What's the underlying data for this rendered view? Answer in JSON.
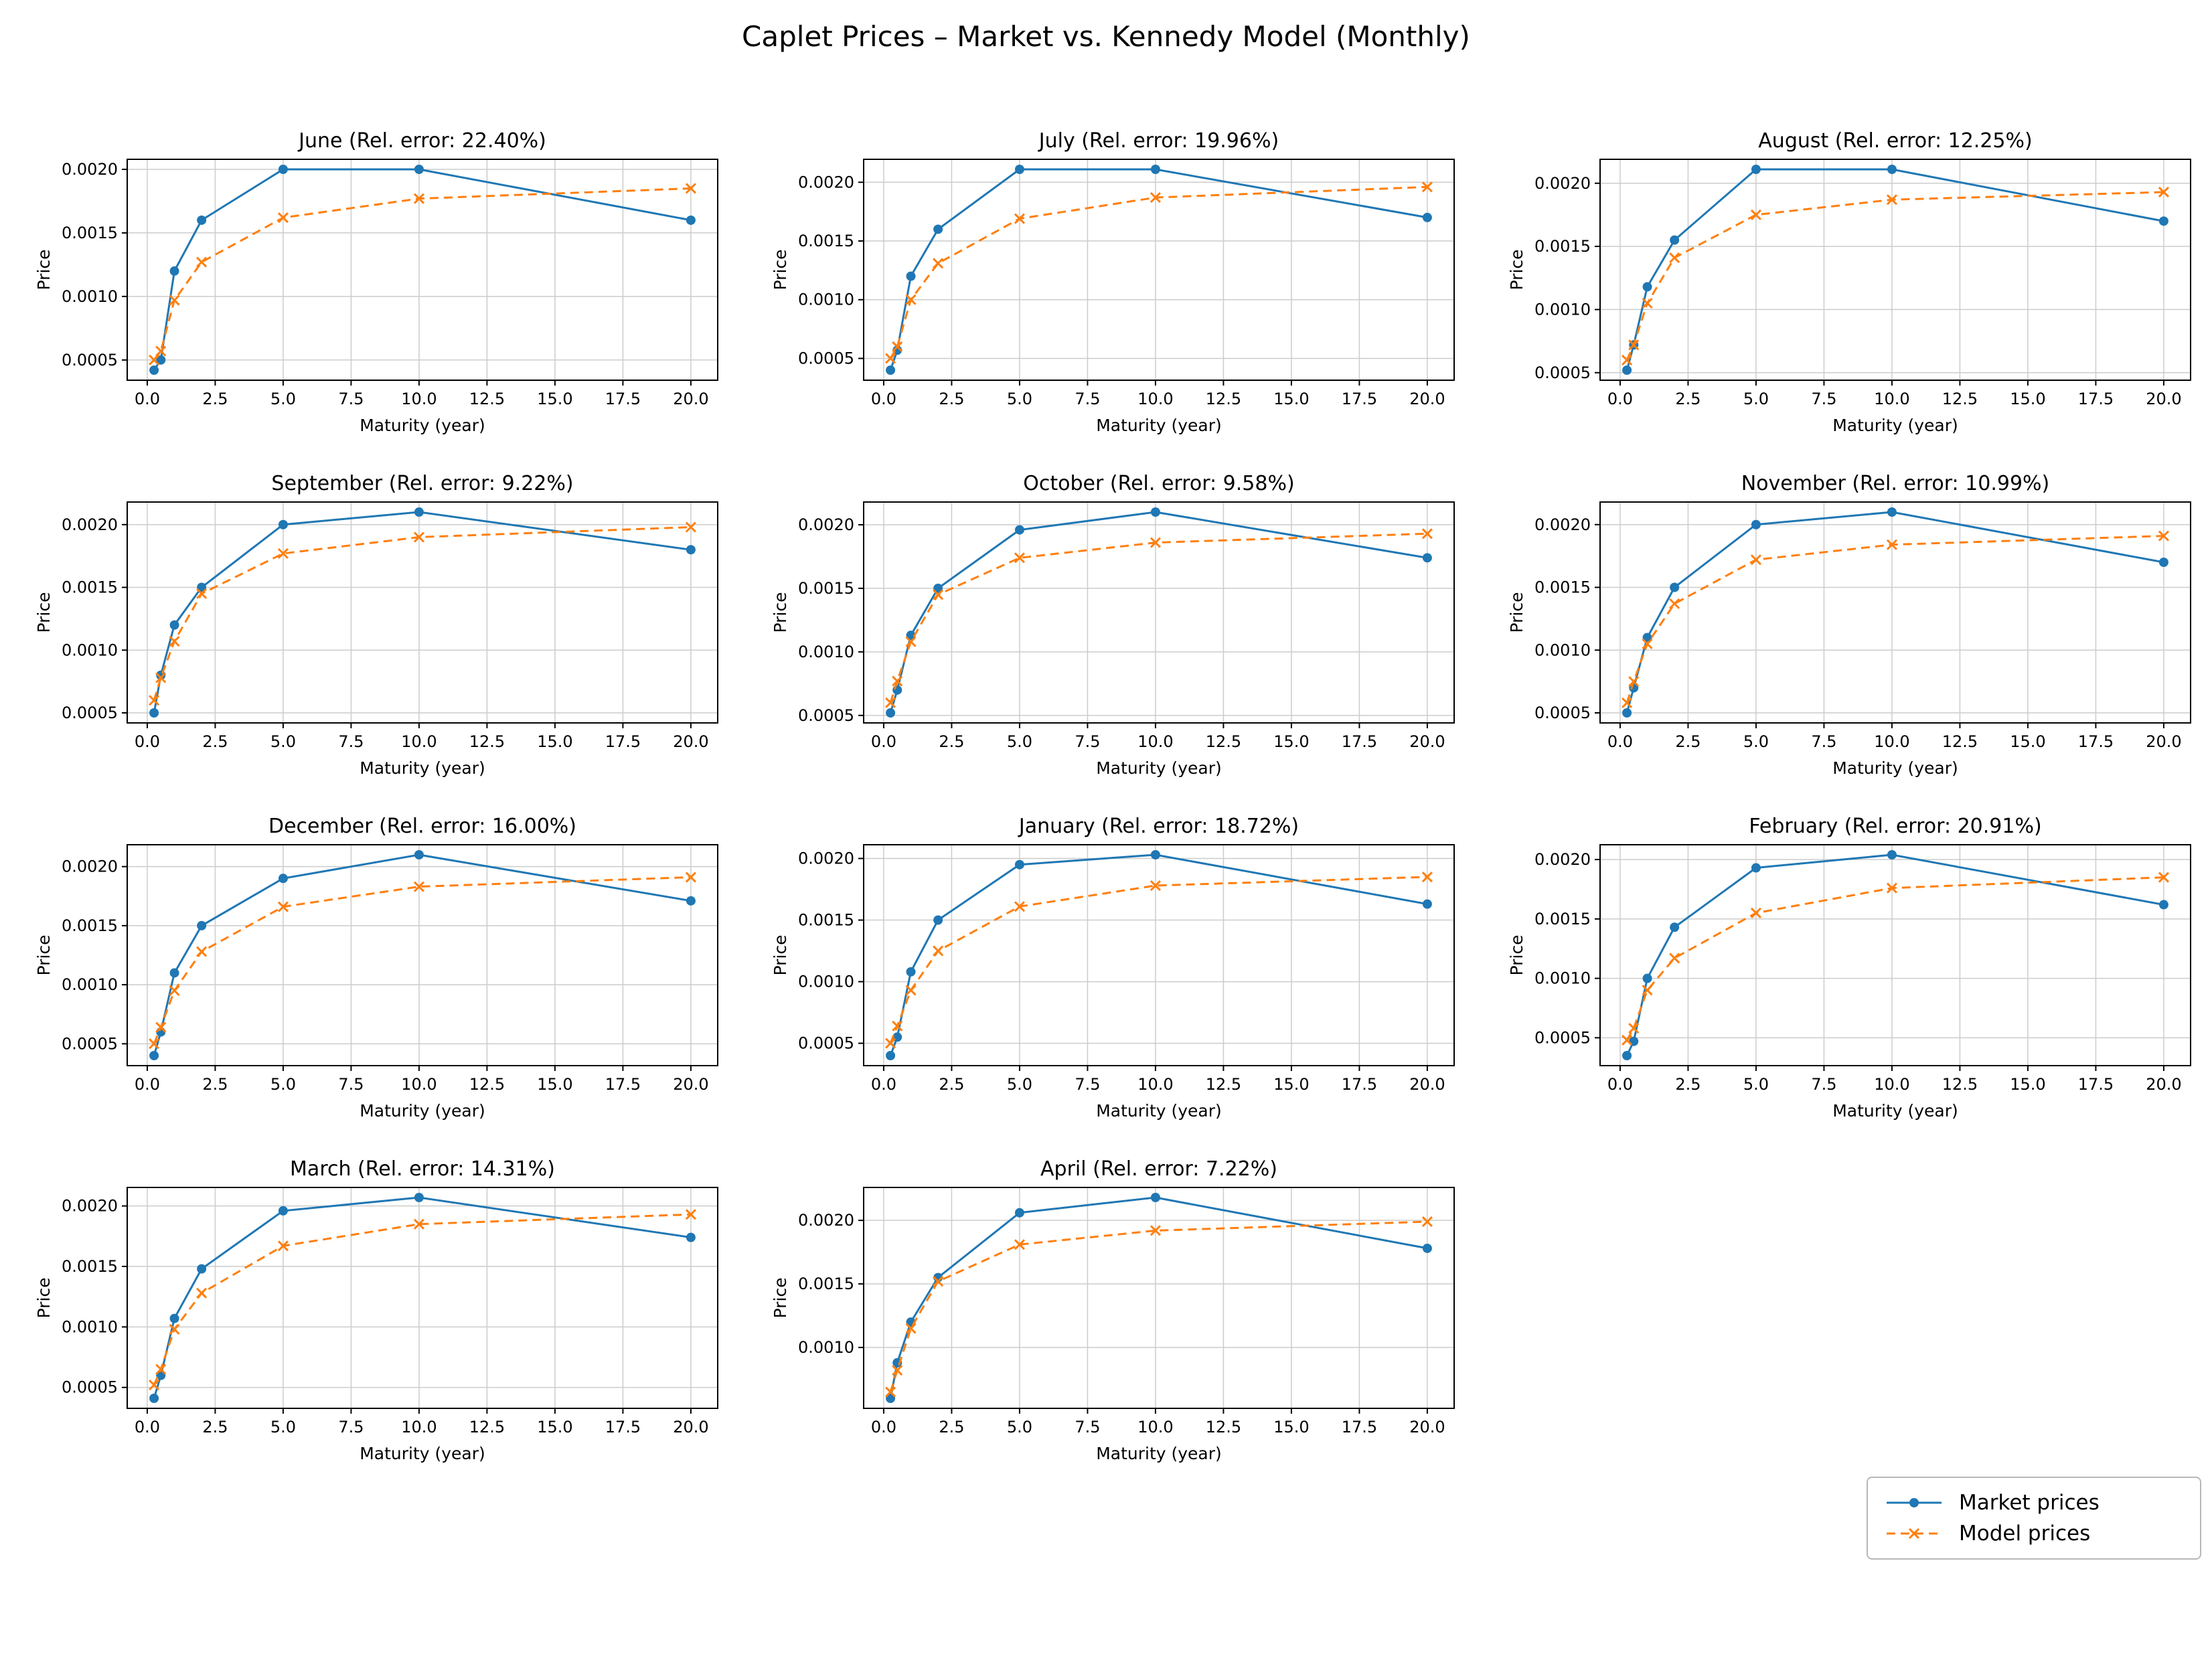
{
  "page": {
    "title": "Caplet Prices – Market vs. Kennedy Model (Monthly)"
  },
  "colors": {
    "market": "#1f77b4",
    "model": "#ff7f0e",
    "grid": "#cccccc",
    "axis": "#000000",
    "background": "#ffffff"
  },
  "chart_data": {
    "type": "line",
    "title": "Caplet Prices – Market vs. Kennedy Model (Monthly)",
    "xlabel": "Maturity (year)",
    "ylabel": "Price",
    "x": [
      0.25,
      0.5,
      1,
      2,
      5,
      10,
      20
    ],
    "xticks": {
      "values": [
        0,
        2.5,
        5,
        7.5,
        10,
        12.5,
        15,
        17.5,
        20
      ],
      "labels": [
        "0.0",
        "2.5",
        "5.0",
        "7.5",
        "10.0",
        "12.5",
        "15.0",
        "17.5",
        "20.0"
      ]
    },
    "yticks": {
      "values": [
        0.0005,
        0.001,
        0.0015,
        0.002
      ],
      "labels": [
        "0.0005",
        "0.0010",
        "0.0015",
        "0.0020"
      ]
    },
    "grid": true,
    "legend": [
      "Market prices",
      "Model prices"
    ],
    "legend_position": "bottom-right",
    "charts": [
      {
        "title": "June (Rel. error: 22.40%)",
        "series": [
          {
            "name": "Market prices",
            "values": [
              0.00042,
              0.0005,
              0.0012,
              0.0016,
              0.002,
              0.002,
              0.0016
            ]
          },
          {
            "name": "Model prices",
            "values": [
              0.0005,
              0.00057,
              0.00097,
              0.00127,
              0.00162,
              0.00177,
              0.00185
            ]
          }
        ]
      },
      {
        "title": "July (Rel. error: 19.96%)",
        "series": [
          {
            "name": "Market prices",
            "values": [
              0.0004,
              0.00057,
              0.0012,
              0.0016,
              0.00211,
              0.00211,
              0.0017
            ]
          },
          {
            "name": "Model prices",
            "values": [
              0.0005,
              0.0006,
              0.001,
              0.00131,
              0.00169,
              0.00187,
              0.00196
            ]
          }
        ]
      },
      {
        "title": "August (Rel. error: 12.25%)",
        "series": [
          {
            "name": "Market prices",
            "values": [
              0.00052,
              0.00072,
              0.00118,
              0.00155,
              0.00211,
              0.00211,
              0.0017
            ]
          },
          {
            "name": "Model prices",
            "values": [
              0.0006,
              0.00072,
              0.00105,
              0.00141,
              0.00175,
              0.00187,
              0.00193
            ]
          }
        ]
      },
      {
        "title": "September (Rel. error: 9.22%)",
        "series": [
          {
            "name": "Market prices",
            "values": [
              0.0005,
              0.0008,
              0.0012,
              0.0015,
              0.002,
              0.0021,
              0.0018
            ]
          },
          {
            "name": "Model prices",
            "values": [
              0.0006,
              0.00078,
              0.00107,
              0.00145,
              0.00177,
              0.0019,
              0.00198
            ]
          }
        ]
      },
      {
        "title": "October (Rel. error: 9.58%)",
        "series": [
          {
            "name": "Market prices",
            "values": [
              0.00052,
              0.0007,
              0.00113,
              0.0015,
              0.00196,
              0.0021,
              0.00174
            ]
          },
          {
            "name": "Model prices",
            "values": [
              0.0006,
              0.00077,
              0.00108,
              0.00145,
              0.00174,
              0.00186,
              0.00193
            ]
          }
        ]
      },
      {
        "title": "November (Rel. error: 10.99%)",
        "series": [
          {
            "name": "Market prices",
            "values": [
              0.0005,
              0.0007,
              0.0011,
              0.0015,
              0.002,
              0.0021,
              0.0017
            ]
          },
          {
            "name": "Model prices",
            "values": [
              0.00058,
              0.00075,
              0.00105,
              0.00137,
              0.00172,
              0.00184,
              0.00191
            ]
          }
        ]
      },
      {
        "title": "December (Rel. error: 16.00%)",
        "series": [
          {
            "name": "Market prices",
            "values": [
              0.0004,
              0.0006,
              0.0011,
              0.0015,
              0.0019,
              0.0021,
              0.00171
            ]
          },
          {
            "name": "Model prices",
            "values": [
              0.0005,
              0.00064,
              0.00095,
              0.00128,
              0.00166,
              0.00183,
              0.00191
            ]
          }
        ]
      },
      {
        "title": "January (Rel. error: 18.72%)",
        "series": [
          {
            "name": "Market prices",
            "values": [
              0.0004,
              0.00055,
              0.00108,
              0.0015,
              0.00195,
              0.00203,
              0.00163
            ]
          },
          {
            "name": "Model prices",
            "values": [
              0.0005,
              0.00064,
              0.00093,
              0.00125,
              0.00161,
              0.00178,
              0.00185
            ]
          }
        ]
      },
      {
        "title": "February (Rel. error: 20.91%)",
        "series": [
          {
            "name": "Market prices",
            "values": [
              0.00035,
              0.00047,
              0.001,
              0.00143,
              0.00193,
              0.00204,
              0.00162
            ]
          },
          {
            "name": "Model prices",
            "values": [
              0.00048,
              0.00058,
              0.0009,
              0.00117,
              0.00155,
              0.00176,
              0.00185
            ]
          }
        ]
      },
      {
        "title": "March (Rel. error: 14.31%)",
        "series": [
          {
            "name": "Market prices",
            "values": [
              0.00041,
              0.0006,
              0.00107,
              0.00148,
              0.00196,
              0.00207,
              0.00174
            ]
          },
          {
            "name": "Model prices",
            "values": [
              0.00052,
              0.00065,
              0.00098,
              0.00128,
              0.00167,
              0.00185,
              0.00193
            ]
          }
        ]
      },
      {
        "title": "April (Rel. error: 7.22%)",
        "series": [
          {
            "name": "Market prices",
            "values": [
              0.0006,
              0.00088,
              0.0012,
              0.00155,
              0.00206,
              0.00218,
              0.00178
            ]
          },
          {
            "name": "Model prices",
            "values": [
              0.00065,
              0.00082,
              0.00115,
              0.00152,
              0.00181,
              0.00192,
              0.00199
            ]
          }
        ]
      }
    ]
  }
}
